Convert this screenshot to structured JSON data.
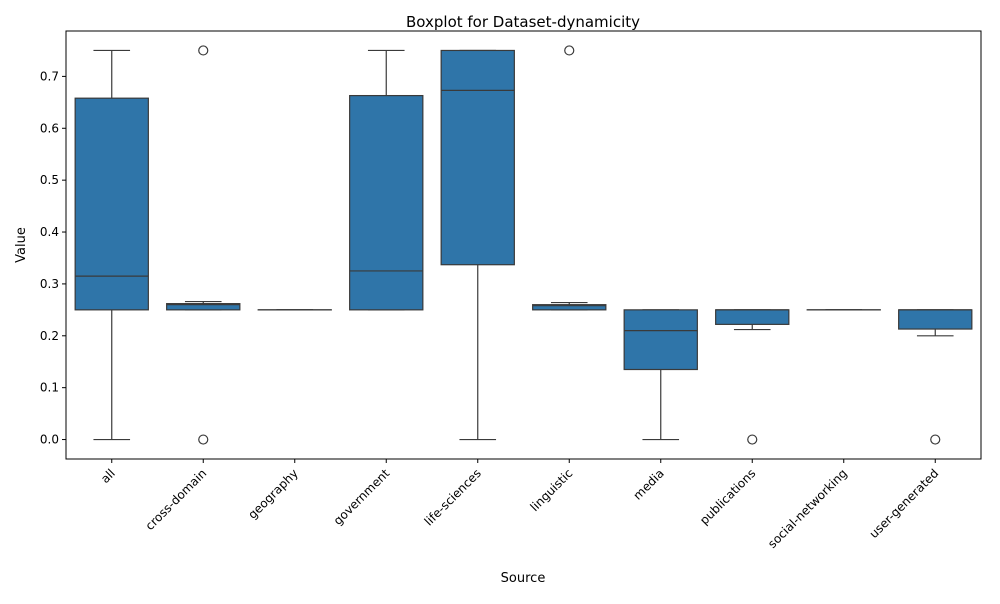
{
  "chart_data": {
    "type": "box",
    "title": "Boxplot for Dataset-dynamicity",
    "xlabel": "Source",
    "ylabel": "Value",
    "ylim": [
      -0.0375,
      0.7875
    ],
    "yticks": [
      "0.0",
      "0.1",
      "0.2",
      "0.3",
      "0.4",
      "0.5",
      "0.6",
      "0.7"
    ],
    "ytick_values": [
      0,
      0.1,
      0.2,
      0.3,
      0.4,
      0.5,
      0.6,
      0.7
    ],
    "grid": false,
    "box_color": "#2f75a9",
    "line_color": "#3a3a3a",
    "categories": [
      "all",
      "cross-domain",
      "geography",
      "government",
      "life-sciences",
      "linguistic",
      "media",
      "publications",
      "social-networking",
      "user-generated"
    ],
    "boxes": [
      {
        "whisker_low": 0.0,
        "q1": 0.25,
        "median": 0.315,
        "q3": 0.658,
        "whisker_high": 0.75,
        "outliers": []
      },
      {
        "whisker_low": 0.25,
        "q1": 0.25,
        "median": 0.26,
        "q3": 0.262,
        "whisker_high": 0.266,
        "outliers": [
          0.75,
          0.0
        ]
      },
      {
        "whisker_low": 0.25,
        "q1": 0.25,
        "median": 0.25,
        "q3": 0.25,
        "whisker_high": 0.25,
        "outliers": []
      },
      {
        "whisker_low": 0.25,
        "q1": 0.25,
        "median": 0.325,
        "q3": 0.663,
        "whisker_high": 0.75,
        "outliers": []
      },
      {
        "whisker_low": 0.0,
        "q1": 0.337,
        "median": 0.673,
        "q3": 0.75,
        "whisker_high": 0.75,
        "outliers": []
      },
      {
        "whisker_low": 0.25,
        "q1": 0.25,
        "median": 0.258,
        "q3": 0.26,
        "whisker_high": 0.264,
        "outliers": [
          0.75
        ]
      },
      {
        "whisker_low": 0.0,
        "q1": 0.135,
        "median": 0.21,
        "q3": 0.25,
        "whisker_high": 0.25,
        "outliers": []
      },
      {
        "whisker_low": 0.212,
        "q1": 0.222,
        "median": 0.25,
        "q3": 0.25,
        "whisker_high": 0.25,
        "outliers": [
          0.0
        ]
      },
      {
        "whisker_low": 0.25,
        "q1": 0.25,
        "median": 0.25,
        "q3": 0.25,
        "whisker_high": 0.25,
        "outliers": []
      },
      {
        "whisker_low": 0.2,
        "q1": 0.213,
        "median": 0.25,
        "q3": 0.25,
        "whisker_high": 0.25,
        "outliers": [
          0.0
        ]
      }
    ]
  }
}
